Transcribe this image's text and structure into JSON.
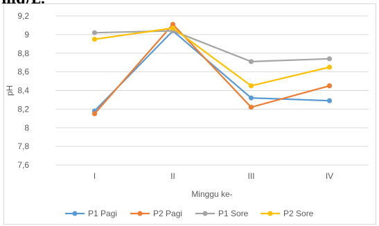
{
  "header_text": "mg/L.",
  "chart_data": {
    "type": "line",
    "categories": [
      "I",
      "II",
      "III",
      "IV"
    ],
    "xlabel": "Minggu ke-",
    "ylabel": "pH",
    "ylim": [
      7.6,
      9.2
    ],
    "yticks": [
      "9,2",
      "9",
      "8,8",
      "8,6",
      "8,4",
      "8,2",
      "8",
      "7,8",
      "7,6"
    ],
    "ytick_values": [
      9.2,
      9.0,
      8.8,
      8.6,
      8.4,
      8.2,
      8.0,
      7.8,
      7.6
    ],
    "grid": true,
    "legend_position": "bottom",
    "series": [
      {
        "name": "P1 Pagi",
        "color": "#5b9bd5",
        "values": [
          8.18,
          9.04,
          8.32,
          8.29
        ]
      },
      {
        "name": "P2 Pagi",
        "color": "#ed7d31",
        "values": [
          8.15,
          9.11,
          8.22,
          8.45
        ]
      },
      {
        "name": "P1 Sore",
        "color": "#a5a5a5",
        "values": [
          9.02,
          9.04,
          8.71,
          8.74
        ]
      },
      {
        "name": "P2 Sore",
        "color": "#ffc000",
        "values": [
          8.95,
          9.07,
          8.45,
          8.65
        ]
      }
    ]
  }
}
